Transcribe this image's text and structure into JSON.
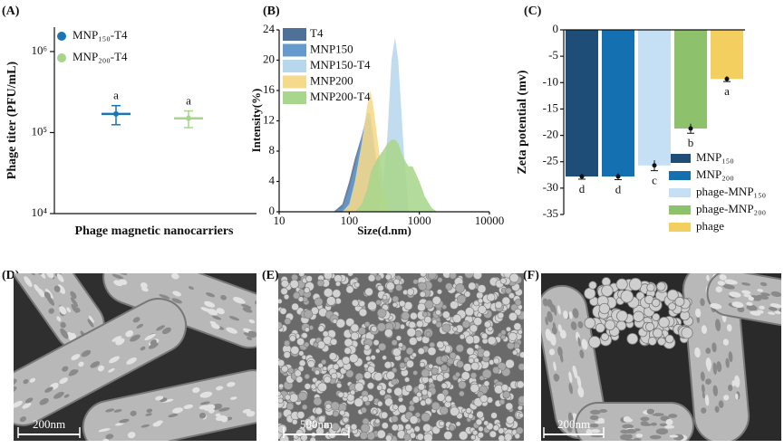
{
  "chart_data": [
    {
      "type": "errorbar",
      "panel": "(A)",
      "ylabel": "Phage titer (PFU/mL)",
      "xlabel": "Phage magnetic nanocarriers",
      "ylog": true,
      "ylim": [
        10000,
        2000000
      ],
      "yticks": [
        {
          "value": 10000,
          "label": "10⁴"
        },
        {
          "value": 100000,
          "label": "10⁵"
        },
        {
          "value": 1000000,
          "label": "10⁶"
        }
      ],
      "series": [
        {
          "name": "MNP₁₅₀-T4",
          "color": "#1b75b4",
          "values": [
            170000
          ],
          "errors": [
            45000
          ]
        },
        {
          "name": "MNP₂₀₀-T4",
          "color": "#a8d58b",
          "values": [
            150000
          ],
          "errors": [
            35000
          ]
        }
      ],
      "letters": [
        "a",
        "a"
      ]
    },
    {
      "type": "area",
      "panel": "(B)",
      "ylabel": "Intensity(%)",
      "xlabel": "Size(d.nm)",
      "xlog": true,
      "xlim": [
        10,
        10000
      ],
      "xticks": [
        10,
        100,
        1000,
        10000
      ],
      "ylim": [
        0,
        24
      ],
      "yticks": [
        0,
        4,
        8,
        12,
        16,
        20,
        24
      ],
      "x": [
        60,
        80,
        100,
        120,
        150,
        180,
        200,
        220,
        250,
        300,
        350,
        400,
        450,
        500,
        600,
        700,
        800,
        1000,
        1200,
        1500,
        1800
      ],
      "series": [
        {
          "name": "T4",
          "color": "#4f7197",
          "values": [
            0,
            1,
            4,
            7,
            10,
            12.5,
            12,
            9,
            5,
            1,
            0,
            0,
            0,
            0,
            0,
            0,
            0,
            0,
            0,
            0,
            0
          ]
        },
        {
          "name": "MNP150",
          "color": "#6699cc",
          "values": [
            0,
            0.5,
            3,
            6,
            10,
            13,
            13,
            10,
            6,
            2,
            0,
            0,
            0,
            0,
            0,
            0,
            0,
            0,
            0,
            0,
            0
          ]
        },
        {
          "name": "MNP150-T4",
          "color": "#b7d7ec",
          "values": [
            0,
            0,
            0,
            0,
            0,
            0,
            0,
            0,
            0,
            3,
            10,
            20,
            23,
            20,
            8,
            0,
            0,
            0,
            0,
            0,
            0
          ]
        },
        {
          "name": "MNP200",
          "color": "#f5da8c",
          "values": [
            0,
            0,
            1,
            4,
            9,
            14,
            16,
            14,
            10,
            4,
            1,
            0,
            0,
            0,
            0,
            0,
            0,
            0,
            0,
            0,
            0
          ]
        },
        {
          "name": "MNP200-T4",
          "color": "#a9d68d",
          "values": [
            0,
            0,
            0,
            0,
            1,
            3,
            5,
            6,
            7,
            8,
            9,
            9.5,
            9.5,
            9,
            7,
            6,
            6,
            4,
            2,
            0.5,
            0
          ]
        }
      ]
    },
    {
      "type": "bar",
      "panel": "(C)",
      "ylabel": "Zeta potential (mv)",
      "ylim": [
        -35,
        0
      ],
      "yticks": [
        0,
        -5,
        -10,
        -15,
        -20,
        -25,
        -30,
        -35
      ],
      "categories": [
        "MNP₁₅₀",
        "MNP₂₀₀",
        "phage-MNP₁₅₀",
        "phage-MNP₂₀₀",
        "phage"
      ],
      "colors": [
        "#1e4d78",
        "#1470b0",
        "#c5e0f5",
        "#8dc16b",
        "#f2cf5e"
      ],
      "values": [
        -27.8,
        -27.8,
        -25.7,
        -18.7,
        -9.3
      ],
      "errors": [
        0.5,
        0.6,
        1,
        0.9,
        0.5
      ],
      "letters": [
        "d",
        "d",
        "c",
        "b",
        "a"
      ]
    }
  ],
  "images": [
    {
      "label": "(D)",
      "scale_bar": "200nm"
    },
    {
      "label": "(E)",
      "scale_bar": "500nm"
    },
    {
      "label": "(F)",
      "scale_bar": "200nm"
    }
  ]
}
